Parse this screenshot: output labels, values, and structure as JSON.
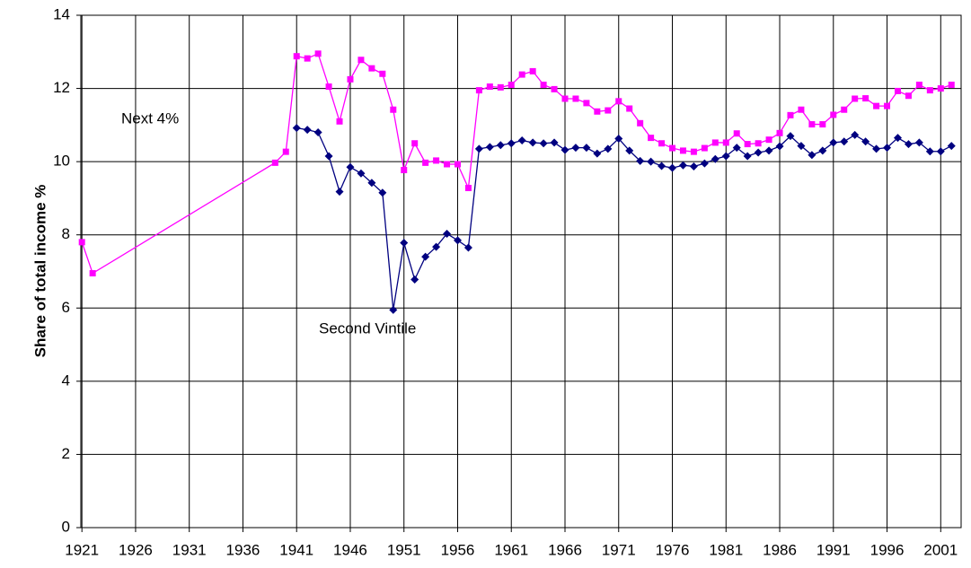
{
  "chart_data": {
    "type": "line",
    "y_label": "Share of total income %",
    "x": [
      1921,
      1922,
      1939,
      1940,
      1941,
      1942,
      1943,
      1944,
      1945,
      1946,
      1947,
      1948,
      1949,
      1950,
      1951,
      1952,
      1953,
      1954,
      1955,
      1956,
      1957,
      1958,
      1959,
      1960,
      1961,
      1962,
      1963,
      1964,
      1965,
      1966,
      1967,
      1968,
      1969,
      1970,
      1971,
      1972,
      1973,
      1974,
      1975,
      1976,
      1977,
      1978,
      1979,
      1980,
      1981,
      1982,
      1983,
      1984,
      1985,
      1986,
      1987,
      1988,
      1989,
      1990,
      1991,
      1992,
      1993,
      1994,
      1995,
      1996,
      1997,
      1998,
      1999,
      2000,
      2001,
      2002
    ],
    "series": [
      {
        "name": "Next 4%",
        "color": "#ff00ff",
        "marker": "square",
        "values": [
          7.8,
          6.95,
          9.97,
          10.27,
          12.88,
          12.82,
          12.95,
          12.05,
          11.1,
          12.25,
          12.78,
          12.55,
          12.4,
          11.42,
          9.77,
          10.5,
          9.97,
          10.03,
          9.93,
          9.93,
          9.28,
          11.95,
          12.05,
          12.03,
          12.1,
          12.38,
          12.47,
          12.1,
          11.98,
          11.72,
          11.72,
          11.6,
          11.37,
          11.4,
          11.65,
          11.45,
          11.05,
          10.65,
          10.5,
          10.37,
          10.3,
          10.27,
          10.37,
          10.52,
          10.52,
          10.77,
          10.48,
          10.5,
          10.6,
          10.78,
          11.27,
          11.42,
          11.02,
          11.02,
          11.28,
          11.42,
          11.72,
          11.73,
          11.52,
          11.52,
          11.93,
          11.8,
          12.1,
          11.95,
          12.0,
          12.1
        ]
      },
      {
        "name": "Second Vintile",
        "color": "#000080",
        "marker": "diamond",
        "values": [
          null,
          null,
          null,
          null,
          10.92,
          10.87,
          10.8,
          10.15,
          9.18,
          9.85,
          9.68,
          9.42,
          9.15,
          5.95,
          7.78,
          6.78,
          7.4,
          7.67,
          8.03,
          7.85,
          7.65,
          10.35,
          10.4,
          10.45,
          10.5,
          10.58,
          10.52,
          10.5,
          10.52,
          10.32,
          10.38,
          10.38,
          10.22,
          10.35,
          10.63,
          10.3,
          10.02,
          10.0,
          9.88,
          9.83,
          9.9,
          9.87,
          9.95,
          10.07,
          10.15,
          10.38,
          10.15,
          10.25,
          10.3,
          10.42,
          10.7,
          10.43,
          10.18,
          10.3,
          10.52,
          10.55,
          10.73,
          10.55,
          10.35,
          10.38,
          10.65,
          10.48,
          10.52,
          10.28,
          10.28,
          10.43
        ]
      }
    ],
    "xlim": [
      1920.9,
      2002.9
    ],
    "xticks": [
      1921,
      1926,
      1931,
      1936,
      1941,
      1946,
      1951,
      1956,
      1961,
      1966,
      1971,
      1976,
      1981,
      1986,
      1991,
      1996,
      2001
    ],
    "ylim": [
      0,
      14
    ],
    "yticks": [
      0,
      2,
      4,
      6,
      8,
      10,
      12,
      14
    ],
    "grid": true
  }
}
